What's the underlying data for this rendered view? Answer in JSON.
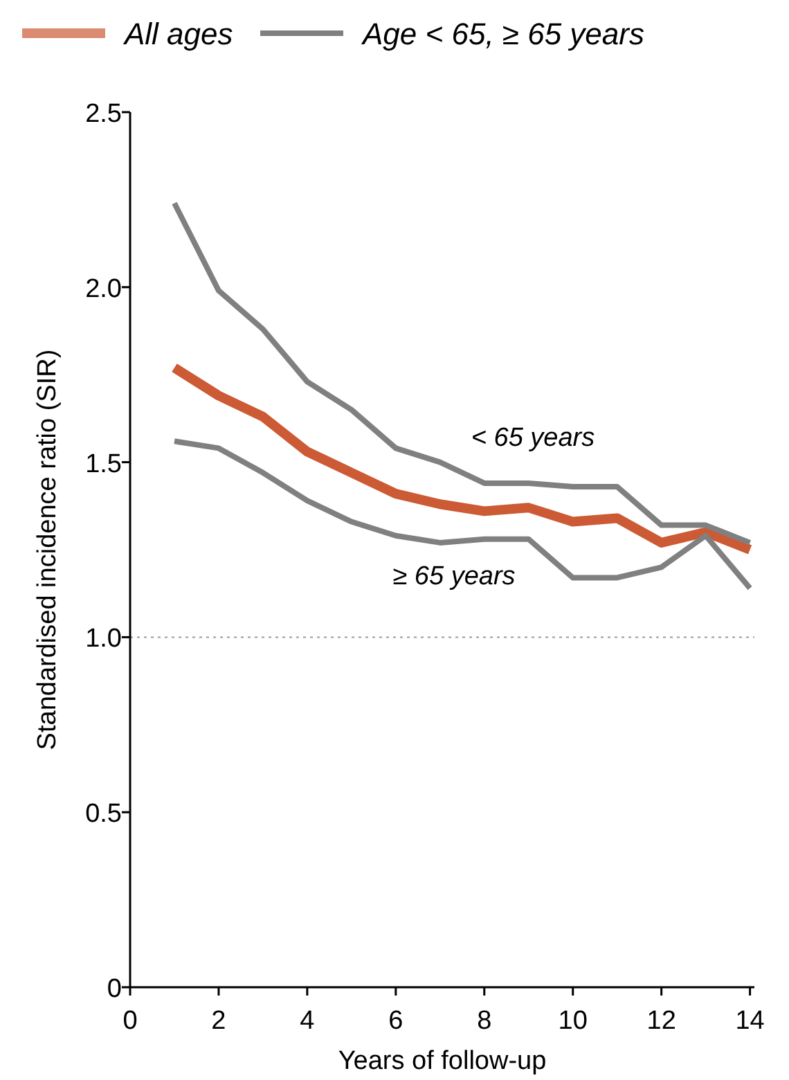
{
  "chart_data": {
    "type": "line",
    "xlabel": "Years of follow-up",
    "ylabel": "Standardised incidence ratio (SIR)",
    "x": [
      1,
      2,
      3,
      4,
      5,
      6,
      7,
      8,
      9,
      10,
      11,
      12,
      13,
      14
    ],
    "series": [
      {
        "name": "All ages",
        "color": "#cc5a35",
        "values": [
          1.77,
          1.69,
          1.63,
          1.53,
          1.47,
          1.41,
          1.38,
          1.36,
          1.37,
          1.33,
          1.34,
          1.27,
          1.3,
          1.25
        ]
      },
      {
        "name": "Age < 65,  ≥ 65 years",
        "color": "#808080",
        "values": [
          2.24,
          1.99,
          1.88,
          1.73,
          1.65,
          1.54,
          1.5,
          1.44,
          1.44,
          1.43,
          1.43,
          1.32,
          1.32,
          1.27
        ]
      },
      {
        "color": "#808080",
        "values": [
          1.56,
          1.54,
          1.47,
          1.39,
          1.33,
          1.29,
          1.27,
          1.28,
          1.28,
          1.17,
          1.17,
          1.2,
          1.29,
          1.14
        ]
      }
    ],
    "annotations": [
      "< 65 years",
      "≥ 65 years"
    ],
    "ref_lines": [
      {
        "axis": "y",
        "value": 1.0,
        "color": "#999999",
        "line_style": "dotted"
      }
    ],
    "xlim": [
      0,
      14.1
    ],
    "xticks": [
      0,
      2,
      4,
      6,
      8,
      10,
      12,
      14
    ],
    "ylim": [
      0,
      2.5
    ],
    "yticks": [
      0,
      0.5,
      {
        "value": 1,
        "label": "1.0"
      },
      1.5,
      {
        "value": 2,
        "label": "2.0"
      },
      2.5
    ],
    "grid": false,
    "legend": "top",
    "marker": "none",
    "line_style": "solid"
  }
}
